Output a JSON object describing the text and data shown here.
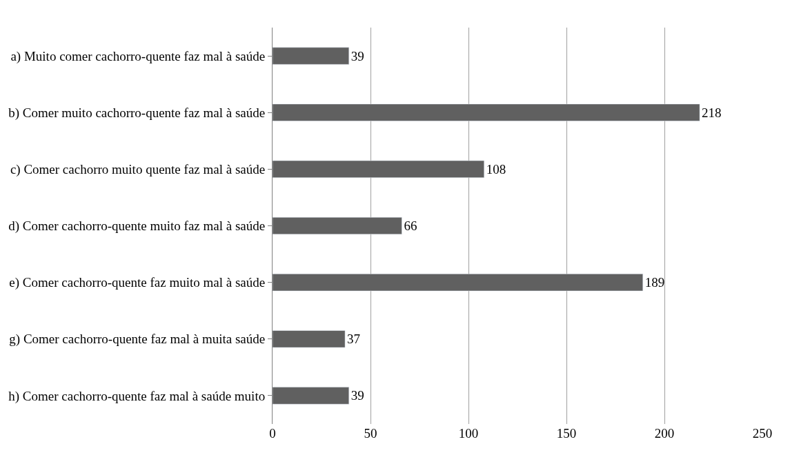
{
  "chart_data": {
    "type": "bar",
    "orientation": "horizontal",
    "categories": [
      "a) Muito comer cachorro-quente faz mal à saúde",
      "b) Comer muito cachorro-quente faz mal à saúde",
      "c) Comer cachorro muito quente faz mal à saúde",
      "d) Comer cachorro-quente muito faz mal à saúde",
      "e) Comer cachorro-quente faz muito mal à saúde",
      "g) Comer cachorro-quente faz mal à muita saúde",
      "h) Comer cachorro-quente faz mal à saúde muito"
    ],
    "values": [
      39,
      218,
      108,
      66,
      189,
      37,
      39
    ],
    "color": "#606060",
    "xlim": [
      0,
      250
    ],
    "xticks": [
      0,
      50,
      100,
      150,
      200,
      250
    ],
    "grid": "x",
    "data_labels": true
  }
}
